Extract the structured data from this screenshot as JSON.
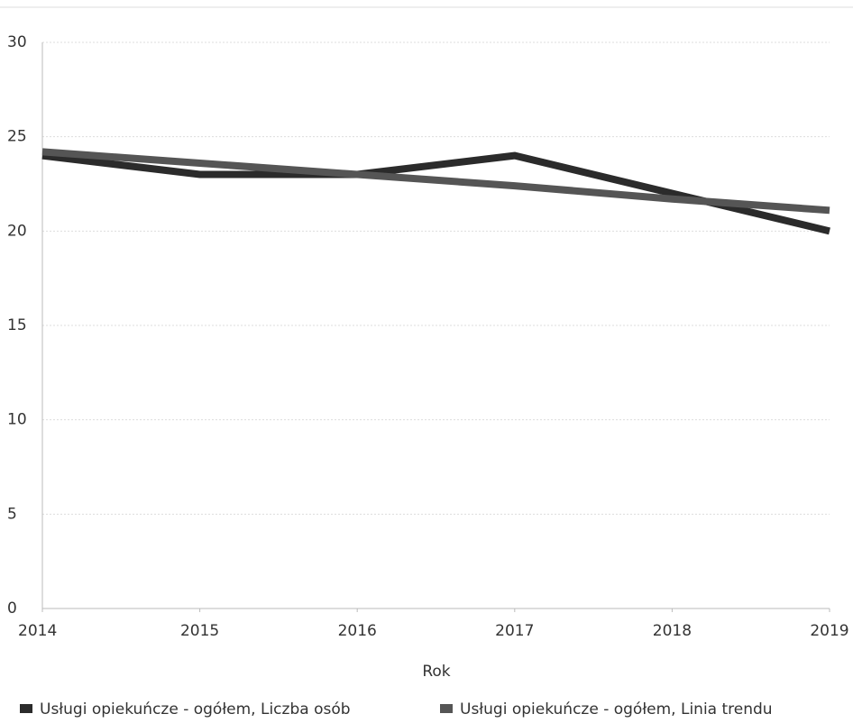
{
  "chart_data": {
    "type": "line",
    "x_label": "Rok",
    "x": [
      2014,
      2015,
      2016,
      2017,
      2018,
      2019
    ],
    "xlim": [
      2014,
      2019
    ],
    "xticks": [
      2014,
      2015,
      2016,
      2017,
      2018,
      2019
    ],
    "ylim": [
      0,
      30
    ],
    "yticks": [
      0,
      5,
      10,
      15,
      20,
      25,
      30
    ],
    "grid": true,
    "legend": "bottom",
    "series": [
      {
        "name": "Usługi opiekuńcze - ogółem, Liczba osób",
        "color": "#2b2b2b",
        "values": [
          24,
          23,
          23,
          24,
          22,
          20
        ]
      },
      {
        "name": "Usługi opiekuńcze - ogółem, Linia trendu",
        "color": "#555555",
        "values": [
          24.2,
          23.6,
          23.0,
          22.4,
          21.7,
          21.1
        ]
      }
    ]
  }
}
